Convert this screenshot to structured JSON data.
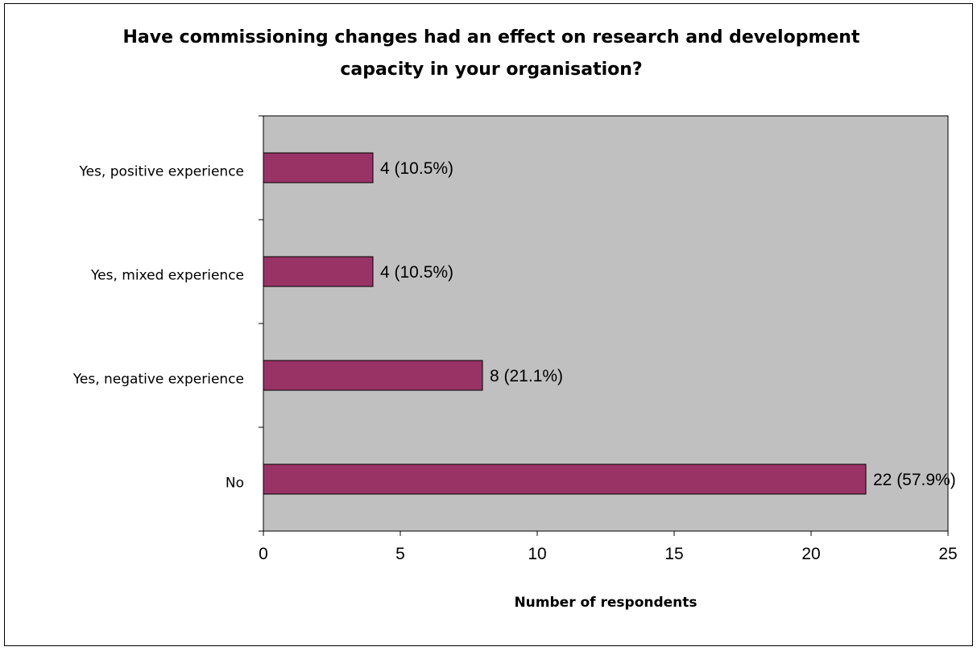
{
  "chart_data": {
    "type": "bar",
    "orientation": "horizontal",
    "title_lines": [
      "Have commissioning changes had an effect on research and development",
      "capacity in your organisation?"
    ],
    "xlabel": "Number of respondents",
    "ylabel": "",
    "categories": [
      "Yes, positive experience",
      "Yes, mixed experience",
      "Yes, negative experience",
      "No"
    ],
    "values": [
      4,
      4,
      8,
      22
    ],
    "data_labels": [
      "4 (10.5%)",
      "4 (10.5%)",
      "8 (21.1%)",
      "22 (57.9%)"
    ],
    "xlim": [
      0,
      25
    ],
    "x_ticks": [
      0,
      5,
      10,
      15,
      20,
      25
    ],
    "grid": false,
    "legend": "none",
    "colors": {
      "bar_fill": "#993366",
      "bar_stroke": "#000000",
      "plot_background": "#c0c0c0",
      "page_background": "#ffffff",
      "frame": "#000000"
    }
  }
}
